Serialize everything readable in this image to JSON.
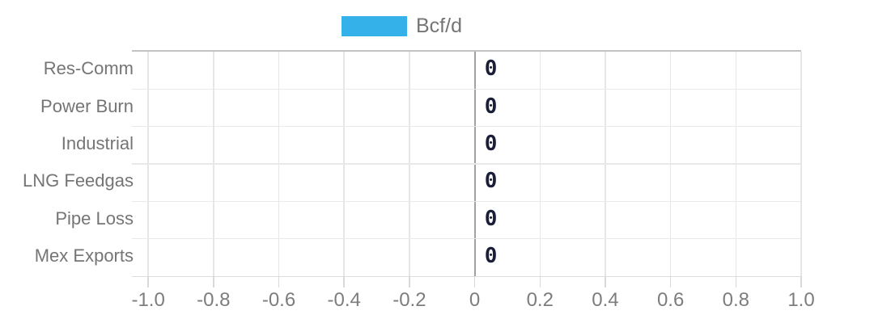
{
  "chart_data": {
    "type": "bar",
    "orientation": "horizontal",
    "series_label": "Bcf/d",
    "categories": [
      "Res-Comm",
      "Power Burn",
      "Industrial",
      "LNG Feedgas",
      "Pipe Loss",
      "Mex Exports"
    ],
    "values": [
      0,
      0,
      0,
      0,
      0,
      0
    ],
    "value_labels": [
      "0",
      "0",
      "0",
      "0",
      "0",
      "0"
    ],
    "xticks": [
      -1.0,
      -0.8,
      -0.6,
      -0.4,
      -0.2,
      0,
      0.2,
      0.4,
      0.6,
      0.8,
      1.0
    ],
    "xtick_labels": [
      "-1.0",
      "-0.8",
      "-0.6",
      "-0.4",
      "-0.2",
      "0",
      "0.2",
      "0.4",
      "0.6",
      "0.8",
      "1.0"
    ],
    "xlim": [
      -1.05,
      1.0
    ],
    "grid": true,
    "legend_position": "top-center",
    "xlabel": "",
    "ylabel": "",
    "title": "",
    "colors": {
      "series": "#35b1ea",
      "value_label": "#1a1e39",
      "axis_text": "#757575",
      "gridline": "#e6e6e6",
      "zero_line": "#a2a2a2",
      "background": "#ffffff"
    }
  }
}
